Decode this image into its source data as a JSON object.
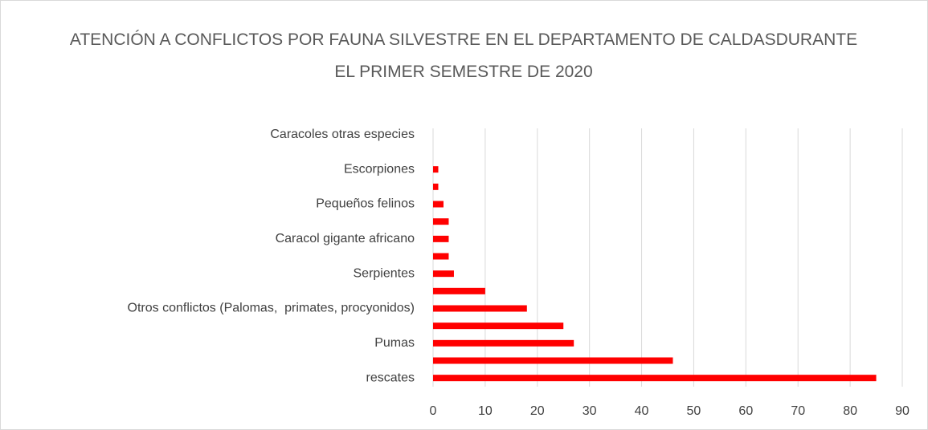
{
  "chart_data": {
    "type": "bar",
    "orientation": "horizontal",
    "title": "ATENCIÓN A CONFLICTOS POR FAUNA SILVESTRE EN EL DEPARTAMENTO DE CALDASDURANTE EL PRIMER SEMESTRE DE 2020",
    "categories": [
      "Caracoles otras especies",
      null,
      "Escorpiones",
      null,
      "Pequeños felinos",
      null,
      "Caracol gigante africano",
      null,
      "Serpientes",
      null,
      "Otros conflictos (Palomas,  primates, procyonidos)",
      null,
      "Pumas",
      null,
      "rescates"
    ],
    "values": [
      0,
      0,
      1,
      1,
      2,
      3,
      3,
      3,
      4,
      10,
      18,
      25,
      27,
      46,
      85
    ],
    "color": "#ff0000",
    "xlim": [
      0,
      90
    ],
    "xticks": [
      0,
      10,
      20,
      30,
      40,
      50,
      60,
      70,
      80,
      90
    ],
    "grid": true
  }
}
